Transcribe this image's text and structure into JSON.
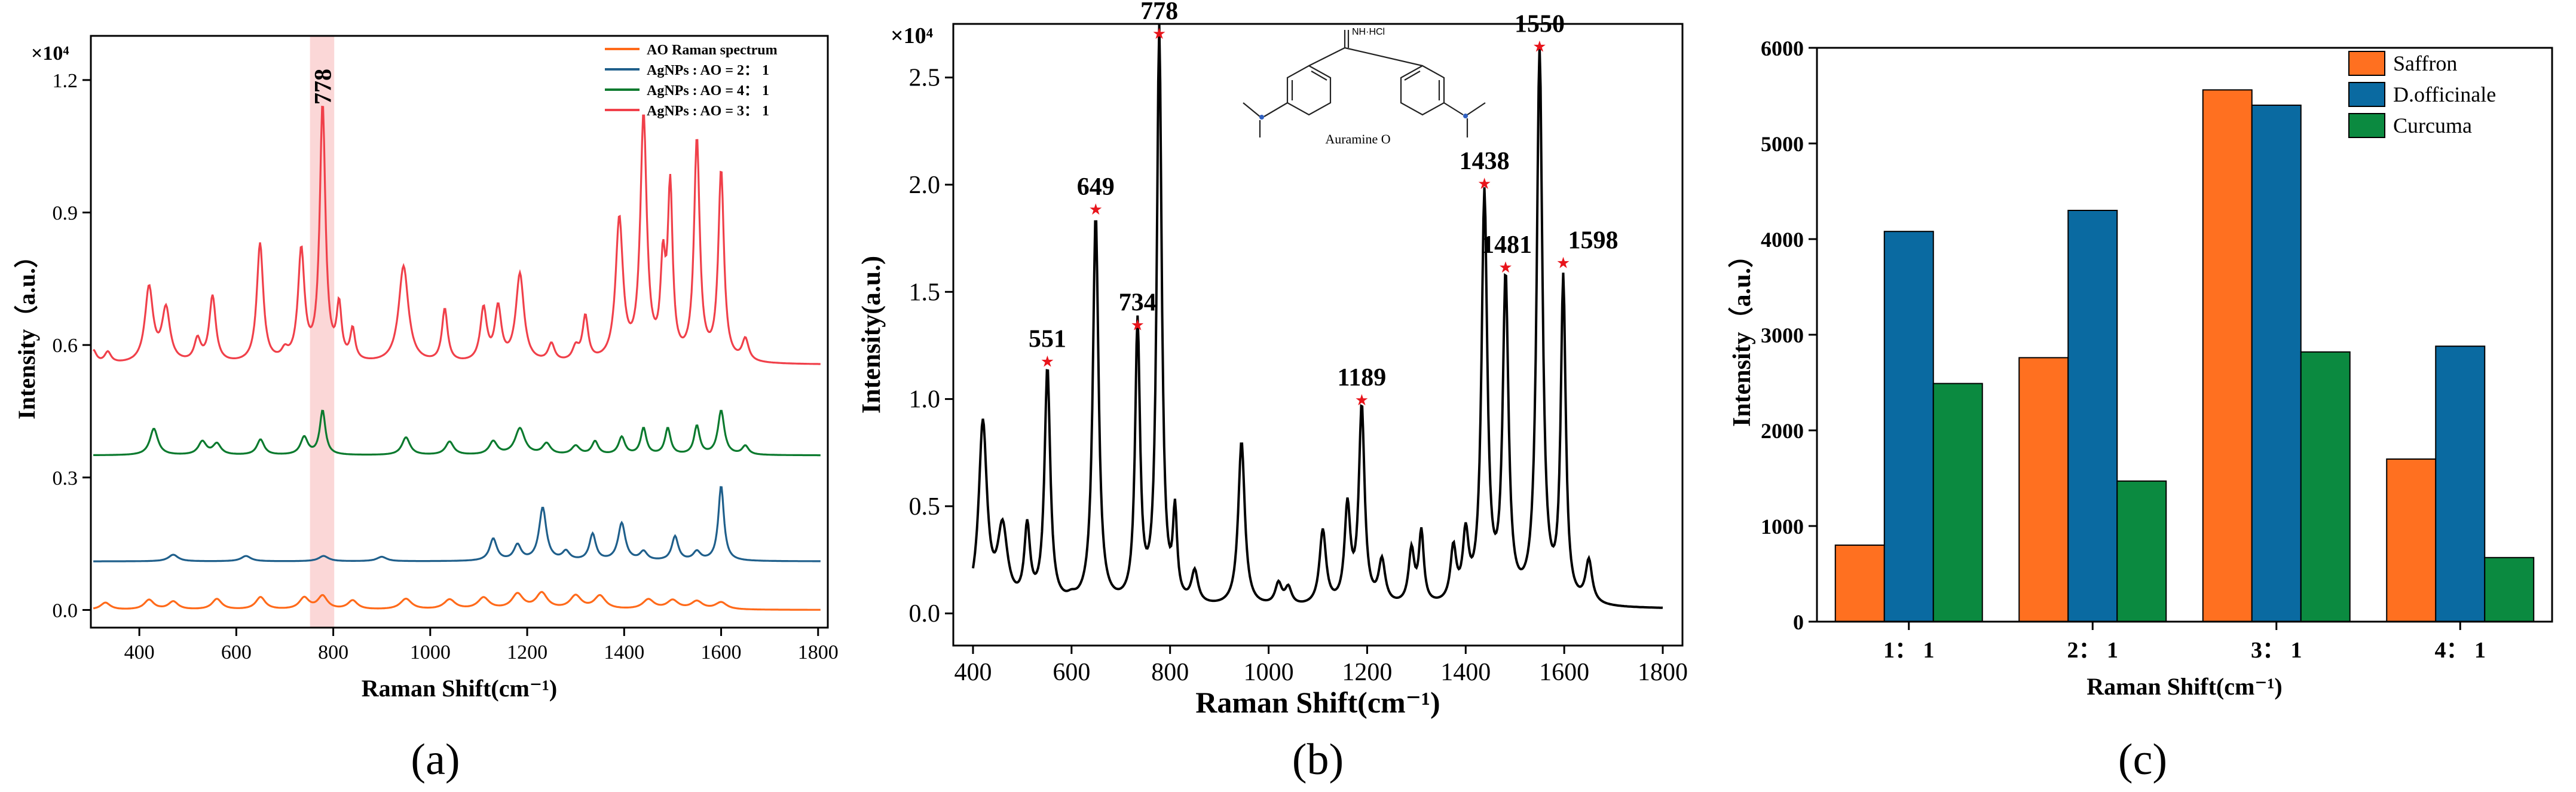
{
  "colors": {
    "axis": "#000000",
    "ao_orange": "#ff6a1a",
    "agnp_blue": "#1f5f8b",
    "agnp_green": "#0b7a2e",
    "agnp_red": "#f0404a",
    "highlight_band": "#f9c9c9",
    "peak_star": "#e8141b",
    "bar_saffron": "#ff7020",
    "bar_dofficinale": "#0a6aa1",
    "bar_curcuma": "#0b8a40"
  },
  "chart_data": [
    {
      "panel": "a",
      "panel_label": "(a)",
      "type": "line",
      "xlabel": "Raman Shift(cm⁻¹)",
      "ylabel": "Intensity（a.u.）",
      "y_scale_label": "×10⁴",
      "xlim": [
        300,
        1820
      ],
      "ylim": [
        -0.04,
        1.3
      ],
      "x_ticks": [
        400,
        600,
        800,
        1000,
        1200,
        1400,
        1600,
        1800
      ],
      "y_ticks": [
        0.0,
        0.3,
        0.6,
        0.9,
        1.2
      ],
      "y_tick_labels": [
        "0.0",
        "0.3",
        "0.6",
        "0.9",
        "1.2"
      ],
      "highlight_band": [
        752,
        802
      ],
      "annotations": [
        {
          "text": "778",
          "x": 778
        }
      ],
      "legend_position": "top-right",
      "series": [
        {
          "name": "AO Raman spectrum",
          "color_key": "ao_orange",
          "baseline": 0.0,
          "peaks": [
            [
              330,
              0.016,
              12
            ],
            [
              420,
              0.022,
              12
            ],
            [
              470,
              0.018,
              12
            ],
            [
              560,
              0.024,
              12
            ],
            [
              650,
              0.028,
              12
            ],
            [
              740,
              0.026,
              12
            ],
            [
              778,
              0.03,
              12
            ],
            [
              840,
              0.02,
              12
            ],
            [
              950,
              0.024,
              14
            ],
            [
              1040,
              0.022,
              14
            ],
            [
              1110,
              0.026,
              14
            ],
            [
              1180,
              0.034,
              14
            ],
            [
              1230,
              0.036,
              14
            ],
            [
              1300,
              0.03,
              14
            ],
            [
              1350,
              0.03,
              14
            ],
            [
              1450,
              0.022,
              14
            ],
            [
              1500,
              0.02,
              14
            ],
            [
              1550,
              0.018,
              14
            ],
            [
              1600,
              0.016,
              14
            ]
          ]
        },
        {
          "name": "AgNPs : AO = 2： 1",
          "color_key": "agnp_blue",
          "baseline": 0.11,
          "peaks": [
            [
              470,
              0.015,
              12
            ],
            [
              620,
              0.012,
              12
            ],
            [
              780,
              0.012,
              12
            ],
            [
              900,
              0.01,
              12
            ],
            [
              1130,
              0.05,
              9
            ],
            [
              1180,
              0.035,
              9
            ],
            [
              1232,
              0.12,
              9
            ],
            [
              1280,
              0.02,
              9
            ],
            [
              1335,
              0.06,
              8
            ],
            [
              1395,
              0.085,
              9
            ],
            [
              1440,
              0.02,
              9
            ],
            [
              1505,
              0.055,
              8
            ],
            [
              1550,
              0.02,
              9
            ],
            [
              1600,
              0.17,
              7
            ]
          ]
        },
        {
          "name": "AgNPs : AO = 4： 1",
          "color_key": "agnp_green",
          "baseline": 0.35,
          "peaks": [
            [
              430,
              0.06,
              10
            ],
            [
              530,
              0.03,
              10
            ],
            [
              560,
              0.025,
              10
            ],
            [
              650,
              0.035,
              9
            ],
            [
              740,
              0.04,
              9
            ],
            [
              778,
              0.1,
              7
            ],
            [
              950,
              0.04,
              10
            ],
            [
              1040,
              0.03,
              10
            ],
            [
              1130,
              0.03,
              10
            ],
            [
              1185,
              0.06,
              12
            ],
            [
              1240,
              0.025,
              10
            ],
            [
              1300,
              0.02,
              10
            ],
            [
              1340,
              0.03,
              8
            ],
            [
              1395,
              0.04,
              8
            ],
            [
              1440,
              0.06,
              7
            ],
            [
              1490,
              0.06,
              7
            ],
            [
              1550,
              0.065,
              7
            ],
            [
              1600,
              0.1,
              8
            ],
            [
              1650,
              0.02,
              8
            ]
          ]
        },
        {
          "name": "AgNPs : AO = 3： 1",
          "color_key": "agnp_red",
          "baseline": 0.555,
          "peaks": [
            [
              305,
              0.03,
              8
            ],
            [
              335,
              0.025,
              8
            ],
            [
              420,
              0.17,
              10
            ],
            [
              455,
              0.12,
              10
            ],
            [
              520,
              0.05,
              8
            ],
            [
              551,
              0.15,
              8
            ],
            [
              649,
              0.27,
              8
            ],
            [
              700,
              0.02,
              8
            ],
            [
              734,
              0.25,
              8
            ],
            [
              778,
              0.58,
              7
            ],
            [
              812,
              0.12,
              6
            ],
            [
              840,
              0.07,
              6
            ],
            [
              945,
              0.22,
              12
            ],
            [
              1030,
              0.12,
              7
            ],
            [
              1110,
              0.12,
              8
            ],
            [
              1140,
              0.12,
              8
            ],
            [
              1185,
              0.2,
              10
            ],
            [
              1250,
              0.04,
              8
            ],
            [
              1300,
              0.03,
              8
            ],
            [
              1320,
              0.1,
              7
            ],
            [
              1390,
              0.32,
              9
            ],
            [
              1440,
              0.55,
              8
            ],
            [
              1480,
              0.2,
              6
            ],
            [
              1495,
              0.38,
              6
            ],
            [
              1550,
              0.5,
              7
            ],
            [
              1600,
              0.43,
              7
            ],
            [
              1650,
              0.05,
              8
            ]
          ]
        }
      ]
    },
    {
      "panel": "b",
      "panel_label": "(b)",
      "type": "line",
      "xlabel": "Raman Shift(cm⁻¹)",
      "ylabel": "Intensity(a.u.)",
      "y_scale_label": "×10⁴",
      "xlim": [
        360,
        1840
      ],
      "ylim": [
        -0.15,
        2.75
      ],
      "x_ticks": [
        400,
        600,
        800,
        1000,
        1200,
        1400,
        1600,
        1800
      ],
      "y_ticks": [
        0.0,
        0.5,
        1.0,
        1.5,
        2.0,
        2.5
      ],
      "y_tick_labels": [
        "0.0",
        "0.5",
        "1.0",
        "1.5",
        "2.0",
        "2.5"
      ],
      "inset_label": "Auramine O",
      "inset_salt_label": "NH·HCl",
      "series": [
        {
          "name": "",
          "color_key": "axis",
          "baseline": 0.02,
          "peaks": [
            [
              420,
              0.85,
              10
            ],
            [
              460,
              0.35,
              12
            ],
            [
              510,
              0.35,
              7
            ],
            [
              551,
              1.1,
              7
            ],
            [
              600,
              0.02,
              10
            ],
            [
              649,
              1.82,
              7
            ],
            [
              734,
              1.3,
              6
            ],
            [
              778,
              2.68,
              6
            ],
            [
              810,
              0.4,
              5
            ],
            [
              850,
              0.15,
              8
            ],
            [
              945,
              0.77,
              8
            ],
            [
              1020,
              0.1,
              8
            ],
            [
              1040,
              0.08,
              8
            ],
            [
              1110,
              0.35,
              8
            ],
            [
              1160,
              0.45,
              7
            ],
            [
              1189,
              0.92,
              7
            ],
            [
              1230,
              0.2,
              8
            ],
            [
              1290,
              0.25,
              7
            ],
            [
              1310,
              0.33,
              6
            ],
            [
              1375,
              0.25,
              7
            ],
            [
              1400,
              0.3,
              7
            ],
            [
              1438,
              1.9,
              7
            ],
            [
              1481,
              1.5,
              7
            ],
            [
              1550,
              2.58,
              7
            ],
            [
              1598,
              1.5,
              6
            ],
            [
              1650,
              0.2,
              8
            ]
          ]
        }
      ],
      "peak_labels": [
        {
          "text": "551",
          "x": 551,
          "y": 1.17
        },
        {
          "text": "649",
          "x": 649,
          "y": 1.88
        },
        {
          "text": "734",
          "x": 734,
          "y": 1.34
        },
        {
          "text": "778",
          "x": 778,
          "y": 2.7
        },
        {
          "text": "1189",
          "x": 1189,
          "y": 0.99
        },
        {
          "text": "1438",
          "x": 1438,
          "y": 2.0
        },
        {
          "text": "1481",
          "x": 1481,
          "y": 1.61
        },
        {
          "text": "1550",
          "x": 1550,
          "y": 2.64
        },
        {
          "text": "1598",
          "x": 1598,
          "y": 1.63
        }
      ]
    },
    {
      "panel": "c",
      "panel_label": "(c)",
      "type": "bar",
      "xlabel": "Raman Shift(cm⁻¹)",
      "ylabel": "Intensity（a.u.）",
      "categories": [
        "1： 1",
        "2： 1",
        "3： 1",
        "4： 1"
      ],
      "ylim": [
        0,
        6000
      ],
      "y_ticks": [
        0,
        1000,
        2000,
        3000,
        4000,
        5000,
        6000
      ],
      "y_tick_labels": [
        "0",
        "1000",
        "2000",
        "3000",
        "4000",
        "5000",
        "6000"
      ],
      "legend_position": "top-right",
      "series": [
        {
          "name": "Saffron",
          "color_key": "bar_saffron",
          "values": [
            800,
            2760,
            5560,
            1700
          ]
        },
        {
          "name": "D.officinale",
          "color_key": "bar_dofficinale",
          "values": [
            4080,
            4300,
            5400,
            2880
          ]
        },
        {
          "name": "Curcuma",
          "color_key": "bar_curcuma",
          "values": [
            2490,
            1470,
            2820,
            670
          ]
        }
      ]
    }
  ]
}
